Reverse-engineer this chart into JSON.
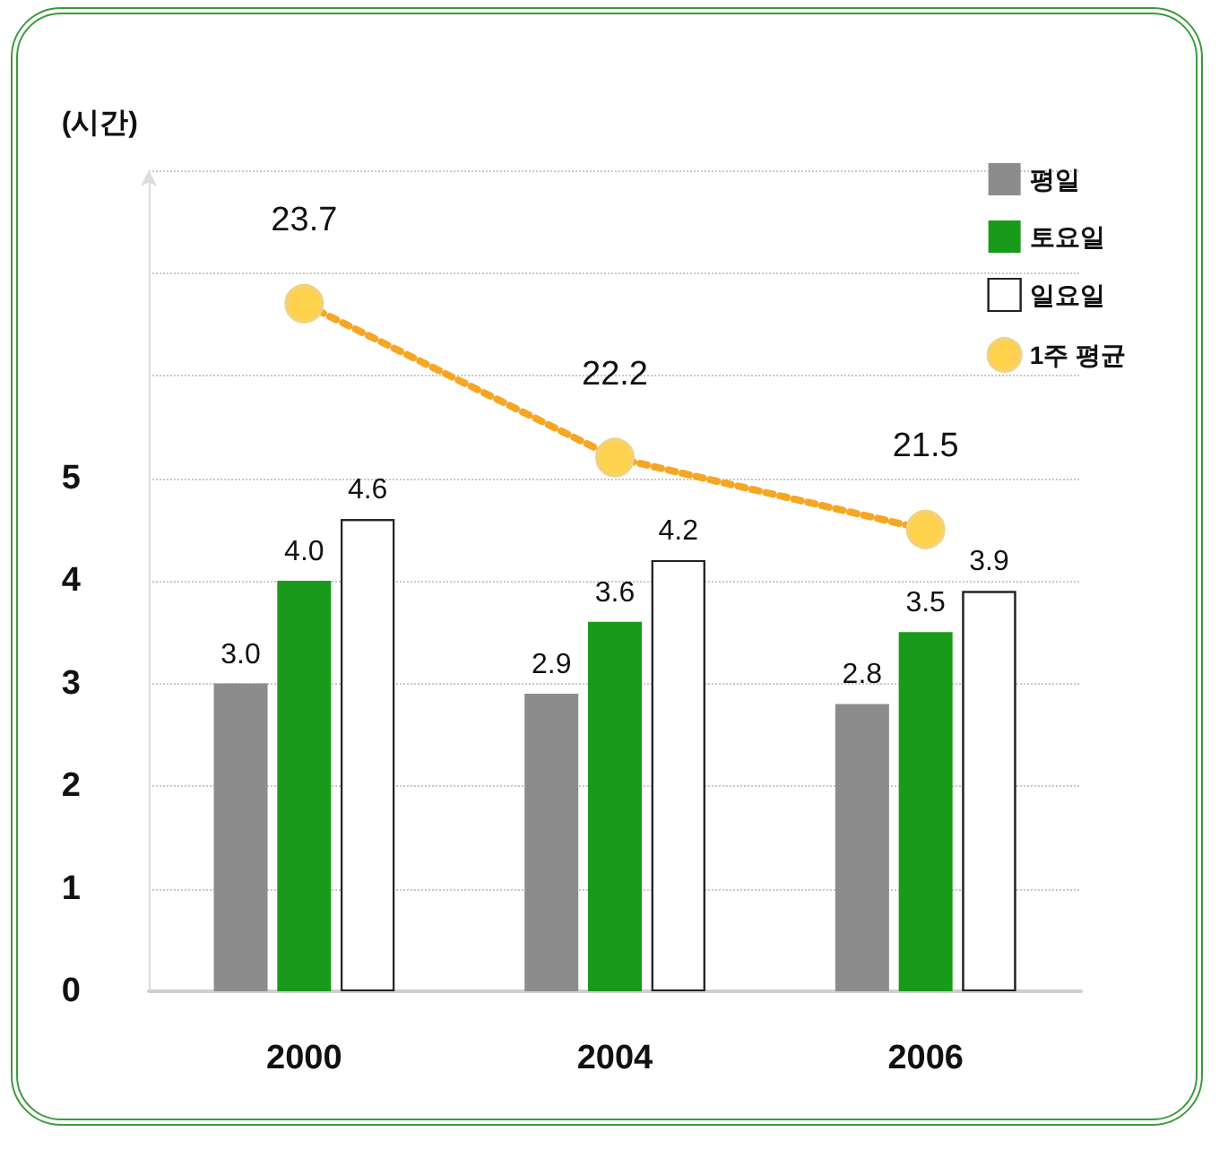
{
  "chart_data": {
    "type": "bar",
    "ylabel": "(시간)",
    "categories": [
      "2000",
      "2004",
      "2006"
    ],
    "series": [
      {
        "name": "평일",
        "color": "#8c8c8c",
        "values": [
          3.0,
          2.9,
          2.8
        ],
        "value_labels": [
          "3.0",
          "2.9",
          "2.8"
        ]
      },
      {
        "name": "토요일",
        "color": "#1a9a1a",
        "values": [
          4.0,
          3.6,
          3.5
        ],
        "value_labels": [
          "4.0",
          "3.6",
          "3.5"
        ]
      },
      {
        "name": "일요일",
        "color": "#ffffff",
        "values": [
          4.6,
          4.2,
          3.9
        ],
        "value_labels": [
          "4.6",
          "4.2",
          "3.9"
        ]
      },
      {
        "name": "1주 평균",
        "type": "line",
        "axis": "y2",
        "color": "#f5a623",
        "values": [
          23.7,
          22.2,
          21.5
        ],
        "value_labels": [
          "23.7",
          "22.2",
          "21.5"
        ],
        "marker": "circle",
        "line_style": "dotted"
      }
    ],
    "ylim": [
      0,
      8
    ],
    "yticks": [
      0,
      1,
      2,
      3,
      4,
      5,
      {
        "value": 6,
        "label": null
      },
      {
        "value": 7,
        "label": null
      },
      {
        "value": 8,
        "label": null
      }
    ],
    "y2lim": [
      17,
      25
    ],
    "grid": "y",
    "legend": "top right"
  }
}
